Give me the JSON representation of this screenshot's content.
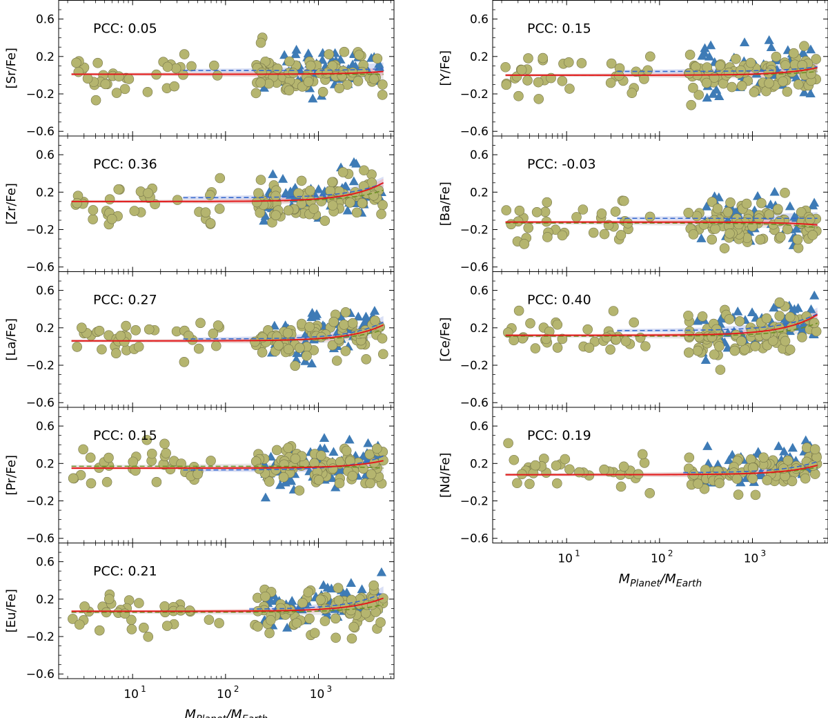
{
  "figure": {
    "x_label_main": "M",
    "x_label_sub1": "Planet",
    "x_label_sep": "/M",
    "x_label_sub2": "Earth"
  },
  "colors": {
    "circle_fill": "#b5b56f",
    "circle_stroke": "#76764a",
    "triangle_fill": "#3e7bb6",
    "fit_red": "#e31a1c",
    "fit_blue": "#3366cc",
    "fit_green": "#6b8e23",
    "band_red": "#f4a5a5",
    "band_blue": "#aab8e8",
    "band_grey": "#c9c9c9"
  },
  "chart_data": [
    {
      "type": "scatter",
      "ylabel": "[Sr/Fe]",
      "pcc_label": "PCC: 0.05",
      "xscale": "log",
      "xlim": [
        1.6,
        6500
      ],
      "ylim": [
        -0.65,
        0.8
      ],
      "yticks": [
        "0.6",
        "0.2",
        "−0.2",
        "−0.6"
      ],
      "ytick_values": [
        0.6,
        0.2,
        -0.2,
        -0.6
      ],
      "xticks": [
        "10",
        "10",
        "10"
      ],
      "xtick_exps": [
        "1",
        "2",
        "3"
      ],
      "xtick_values": [
        10,
        100,
        1000
      ],
      "fit_red": {
        "a": 0.01,
        "b": 0.03
      },
      "fit_blue": {
        "a": 0.05,
        "b": 0.02,
        "xmin": 35
      },
      "fit_green": {
        "a": 0.01,
        "b": 0.0
      },
      "series": [
        {
          "name": "circles",
          "marker": "circle"
        },
        {
          "name": "triangles",
          "marker": "triangle"
        }
      ],
      "seed": 11
    },
    {
      "type": "scatter",
      "ylabel": "[Zr/Fe]",
      "pcc_label": "PCC: 0.36",
      "xscale": "log",
      "xlim": [
        1.6,
        6500
      ],
      "ylim": [
        -0.65,
        0.8
      ],
      "yticks": [
        "0.6",
        "0.2",
        "−0.2",
        "−0.6"
      ],
      "ytick_values": [
        0.6,
        0.2,
        -0.2,
        -0.6
      ],
      "xticks": [
        "10",
        "10",
        "10"
      ],
      "xtick_exps": [
        "1",
        "2",
        "3"
      ],
      "xtick_values": [
        10,
        100,
        1000
      ],
      "fit_red": {
        "a": 0.1,
        "b": 0.2
      },
      "fit_blue": {
        "a": 0.14,
        "b": 0.16,
        "xmin": 35
      },
      "fit_green": {
        "a": 0.1,
        "b": 0.12
      },
      "series": [
        {
          "name": "circles",
          "marker": "circle"
        },
        {
          "name": "triangles",
          "marker": "triangle"
        }
      ],
      "seed": 23
    },
    {
      "type": "scatter",
      "ylabel": "[La/Fe]",
      "pcc_label": "PCC: 0.27",
      "xscale": "log",
      "xlim": [
        1.6,
        6500
      ],
      "ylim": [
        -0.65,
        0.8
      ],
      "yticks": [
        "0.6",
        "0.2",
        "−0.2",
        "−0.6"
      ],
      "ytick_values": [
        0.6,
        0.2,
        -0.2,
        -0.6
      ],
      "xticks": [
        "10",
        "10",
        "10"
      ],
      "xtick_exps": [
        "1",
        "2",
        "3"
      ],
      "xtick_values": [
        10,
        100,
        1000
      ],
      "fit_red": {
        "a": 0.06,
        "b": 0.17
      },
      "fit_blue": {
        "a": 0.08,
        "b": 0.18,
        "xmin": 35
      },
      "fit_green": {
        "a": 0.06,
        "b": 0.12
      },
      "series": [
        {
          "name": "circles",
          "marker": "circle"
        },
        {
          "name": "triangles",
          "marker": "triangle"
        }
      ],
      "seed": 37
    },
    {
      "type": "scatter",
      "ylabel": "[Pr/Fe]",
      "pcc_label": "PCC: 0.15",
      "xscale": "log",
      "xlim": [
        1.6,
        6500
      ],
      "ylim": [
        -0.65,
        0.8
      ],
      "yticks": [
        "0.6",
        "0.2",
        "−0.2",
        "−0.6"
      ],
      "ytick_values": [
        0.6,
        0.2,
        -0.2,
        -0.6
      ],
      "xticks": [
        "10",
        "10",
        "10"
      ],
      "xtick_exps": [
        "1",
        "2",
        "3"
      ],
      "xtick_values": [
        10,
        100,
        1000
      ],
      "fit_red": {
        "a": 0.15,
        "b": 0.08
      },
      "fit_blue": {
        "a": 0.13,
        "b": 0.15,
        "xmin": 35
      },
      "fit_green": {
        "a": 0.17,
        "b": -0.02
      },
      "series": [
        {
          "name": "circles",
          "marker": "circle"
        },
        {
          "name": "triangles",
          "marker": "triangle"
        }
      ],
      "seed": 41
    },
    {
      "type": "scatter",
      "ylabel": "[Eu/Fe]",
      "pcc_label": "PCC: 0.21",
      "xscale": "log",
      "xlim": [
        1.6,
        6500
      ],
      "ylim": [
        -0.65,
        0.8
      ],
      "yticks": [
        "0.6",
        "0.2",
        "−0.2",
        "−0.6"
      ],
      "ytick_values": [
        0.6,
        0.2,
        -0.2,
        -0.6
      ],
      "xticks": [
        "10",
        "10",
        "10"
      ],
      "xtick_exps": [
        "1",
        "2",
        "3"
      ],
      "xtick_values": [
        10,
        100,
        1000
      ],
      "fit_red": {
        "a": 0.07,
        "b": 0.14
      },
      "fit_blue": {
        "a": 0.09,
        "b": 0.18,
        "xmin": 180
      },
      "fit_green": {
        "a": 0.06,
        "b": 0.08
      },
      "series": [
        {
          "name": "circles",
          "marker": "circle"
        },
        {
          "name": "triangles",
          "marker": "triangle"
        }
      ],
      "seed": 53
    },
    {
      "type": "scatter",
      "ylabel": "[Y/Fe]",
      "pcc_label": "PCC: 0.15",
      "xscale": "log",
      "xlim": [
        1.6,
        6500
      ],
      "ylim": [
        -0.65,
        0.8
      ],
      "yticks": [
        "0.6",
        "0.2",
        "−0.2",
        "−0.6"
      ],
      "ytick_values": [
        0.6,
        0.2,
        -0.2,
        -0.6
      ],
      "xticks": [
        "10",
        "10",
        "10"
      ],
      "xtick_exps": [
        "1",
        "2",
        "3"
      ],
      "xtick_values": [
        10,
        100,
        1000
      ],
      "fit_red": {
        "a": 0.0,
        "b": 0.08
      },
      "fit_blue": {
        "a": 0.04,
        "b": 0.05,
        "xmin": 35
      },
      "fit_green": {
        "a": 0.0,
        "b": 0.04
      },
      "series": [
        {
          "name": "circles",
          "marker": "circle"
        },
        {
          "name": "triangles",
          "marker": "triangle"
        }
      ],
      "seed": 67
    },
    {
      "type": "scatter",
      "ylabel": "[Ba/Fe]",
      "pcc_label": "PCC: -0.03",
      "xscale": "log",
      "xlim": [
        1.6,
        6500
      ],
      "ylim": [
        -0.65,
        0.8
      ],
      "yticks": [
        "0.6",
        "0.2",
        "−0.2",
        "−0.6"
      ],
      "ytick_values": [
        0.6,
        0.2,
        -0.2,
        -0.6
      ],
      "xticks": [
        "10",
        "10",
        "10"
      ],
      "xtick_exps": [
        "1",
        "2",
        "3"
      ],
      "xtick_values": [
        10,
        100,
        1000
      ],
      "fit_red": {
        "a": -0.12,
        "b": -0.03
      },
      "fit_blue": {
        "a": -0.08,
        "b": 0.0,
        "xmin": 35
      },
      "fit_green": {
        "a": -0.13,
        "b": -0.05
      },
      "series": [
        {
          "name": "circles",
          "marker": "circle"
        },
        {
          "name": "triangles",
          "marker": "triangle"
        }
      ],
      "seed": 79
    },
    {
      "type": "scatter",
      "ylabel": "[Ce/Fe]",
      "pcc_label": "PCC: 0.40",
      "xscale": "log",
      "xlim": [
        1.6,
        6500
      ],
      "ylim": [
        -0.65,
        0.8
      ],
      "yticks": [
        "0.6",
        "0.2",
        "−0.2",
        "−0.6"
      ],
      "ytick_values": [
        0.6,
        0.2,
        -0.2,
        -0.6
      ],
      "xticks": [
        "10",
        "10",
        "10"
      ],
      "xtick_exps": [
        "1",
        "2",
        "3"
      ],
      "xtick_values": [
        10,
        100,
        1000
      ],
      "fit_red": {
        "a": 0.12,
        "b": 0.22
      },
      "fit_blue": {
        "a": 0.17,
        "b": 0.18,
        "xmin": 35
      },
      "fit_green": {
        "a": 0.11,
        "b": 0.14
      },
      "series": [
        {
          "name": "circles",
          "marker": "circle"
        },
        {
          "name": "triangles",
          "marker": "triangle"
        }
      ],
      "seed": 83
    },
    {
      "type": "scatter",
      "ylabel": "[Nd/Fe]",
      "pcc_label": "PCC: 0.19",
      "xscale": "log",
      "xlim": [
        1.6,
        6500
      ],
      "ylim": [
        -0.65,
        0.8
      ],
      "yticks": [
        "0.6",
        "0.2",
        "−0.2",
        "−0.6"
      ],
      "ytick_values": [
        0.6,
        0.2,
        -0.2,
        -0.6
      ],
      "xticks": [
        "10",
        "10",
        "10"
      ],
      "xtick_exps": [
        "1",
        "2",
        "3"
      ],
      "xtick_values": [
        10,
        100,
        1000
      ],
      "fit_red": {
        "a": 0.08,
        "b": 0.1
      },
      "fit_blue": {
        "a": 0.1,
        "b": 0.12,
        "xmin": 180
      },
      "fit_green": {
        "a": 0.08,
        "b": 0.08
      },
      "series": [
        {
          "name": "circles",
          "marker": "circle"
        },
        {
          "name": "triangles",
          "marker": "triangle"
        }
      ],
      "seed": 97
    }
  ]
}
